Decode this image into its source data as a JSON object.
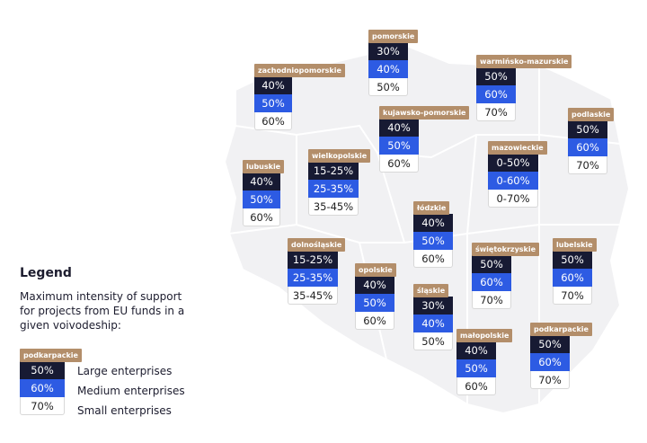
{
  "legend": {
    "title": "Legend",
    "description": "Maximum intensity of support for projects from EU funds in a given voivodeship:",
    "example": {
      "name": "podkarpackie",
      "values": [
        "50%",
        "60%",
        "70%"
      ]
    },
    "labels": [
      "Large enterprises",
      "Medium enterprises",
      "Small enterprises"
    ]
  },
  "regions": [
    {
      "name": "pomorskie",
      "values": [
        "30%",
        "40%",
        "50%"
      ]
    },
    {
      "name": "zachodniopomorskie",
      "values": [
        "40%",
        "50%",
        "60%"
      ]
    },
    {
      "name": "warmińsko-mazurskie",
      "values": [
        "50%",
        "60%",
        "70%"
      ]
    },
    {
      "name": "kujawsko-pomorskie",
      "values": [
        "40%",
        "50%",
        "60%"
      ]
    },
    {
      "name": "podlaskie",
      "values": [
        "50%",
        "60%",
        "70%"
      ]
    },
    {
      "name": "mazowieckie",
      "values": [
        "0-50%",
        "0-60%",
        "0-70%"
      ]
    },
    {
      "name": "lubuskie",
      "values": [
        "40%",
        "50%",
        "60%"
      ]
    },
    {
      "name": "wielkopolskie",
      "values": [
        "15-25%",
        "25-35%",
        "35-45%"
      ]
    },
    {
      "name": "łódzkie",
      "values": [
        "40%",
        "50%",
        "60%"
      ]
    },
    {
      "name": "dolnośląskie",
      "values": [
        "15-25%",
        "25-35%",
        "35-45%"
      ]
    },
    {
      "name": "opolskie",
      "values": [
        "40%",
        "50%",
        "60%"
      ]
    },
    {
      "name": "świętokrzyskie",
      "values": [
        "50%",
        "60%",
        "70%"
      ]
    },
    {
      "name": "lubelskie",
      "values": [
        "50%",
        "60%",
        "70%"
      ]
    },
    {
      "name": "śląskie",
      "values": [
        "30%",
        "40%",
        "50%"
      ]
    },
    {
      "name": "małopolskie",
      "values": [
        "40%",
        "50%",
        "60%"
      ]
    },
    {
      "name": "podkarpackie",
      "values": [
        "50%",
        "60%",
        "70%"
      ]
    }
  ]
}
